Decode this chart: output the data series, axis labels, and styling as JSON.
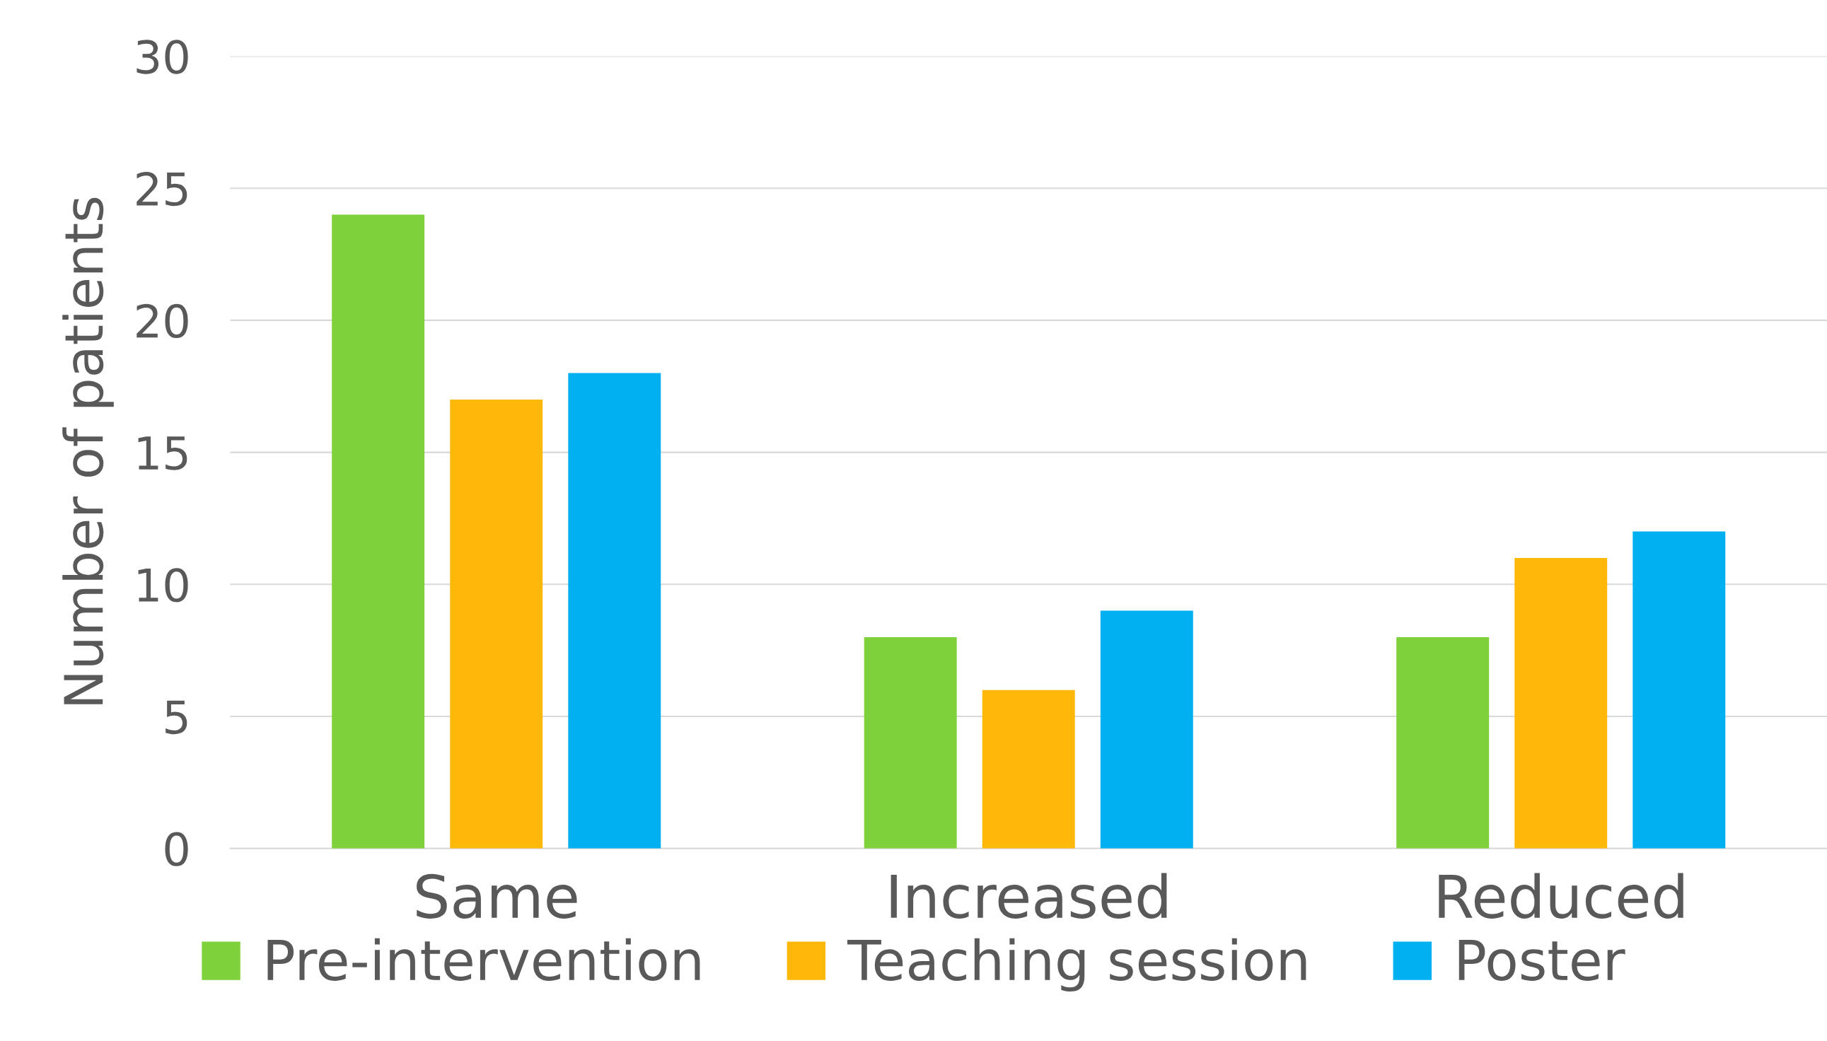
{
  "chart_data": {
    "type": "bar",
    "ylabel": "Number of patients",
    "categories": [
      "Same",
      "Increased",
      "Reduced"
    ],
    "series": [
      {
        "name": "Pre-intervention",
        "color": "#7fd13b",
        "values": [
          24,
          8,
          8
        ]
      },
      {
        "name": "Teaching session",
        "color": "#feb80a",
        "values": [
          17,
          6,
          11
        ]
      },
      {
        "name": "Poster",
        "color": "#00b0f0",
        "values": [
          18,
          9,
          12
        ]
      }
    ],
    "ylim": [
      0,
      30
    ],
    "yticks": [
      0,
      5,
      10,
      15,
      20,
      25,
      30
    ],
    "grid": "y",
    "legend": "bottom"
  }
}
